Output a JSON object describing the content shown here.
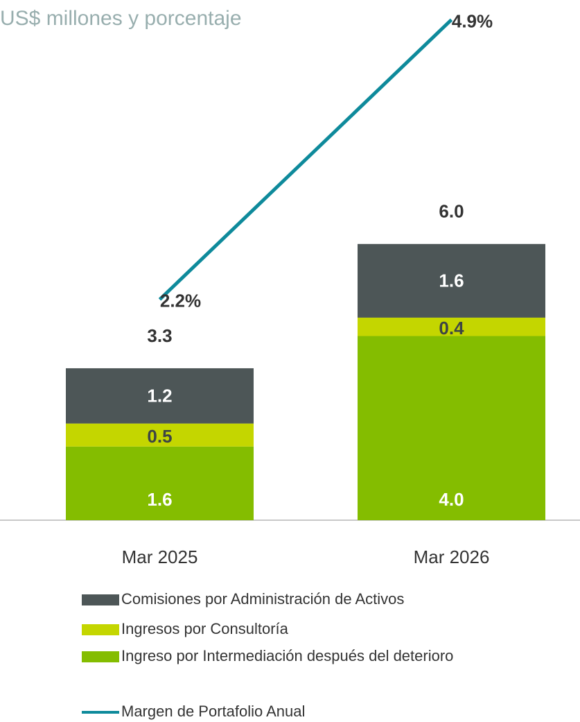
{
  "chart_data": {
    "type": "bar",
    "subtitle": "US$ millones y porcentaje",
    "categories": [
      "Mar 2025",
      "Mar 2026"
    ],
    "series": [
      {
        "name": "Ingreso por Intermediación después del deterioro",
        "color": "#84bd00",
        "values": [
          1.6,
          4.0
        ],
        "value_labels": [
          "1.6",
          "4.0"
        ],
        "label_color": "#ffffff"
      },
      {
        "name": "Ingresos por Consultoría",
        "color": "#c4d600",
        "values": [
          0.5,
          0.4
        ],
        "label_color": "#3d4545"
      },
      {
        "name": "Comisiones por Administración de Activos",
        "color": "#4d5657",
        "values": [
          1.2,
          1.6
        ],
        "label_color": "#ffffff"
      },
      {
        "name": "Margen de Portafolio Anual",
        "type": "line",
        "axis": "y2",
        "color": "#0e8a9b",
        "values": [
          2.2,
          4.9
        ],
        "value_labels": [
          "2.2%",
          "4.9%"
        ]
      }
    ],
    "totals": [
      3.3,
      6.0
    ],
    "totals_labels": [
      "3.3",
      "6.0"
    ],
    "ylim": [
      0,
      11.3
    ],
    "y2lim": [
      0.07,
      5.09
    ],
    "legend_order": [
      2,
      1,
      0,
      3
    ]
  }
}
